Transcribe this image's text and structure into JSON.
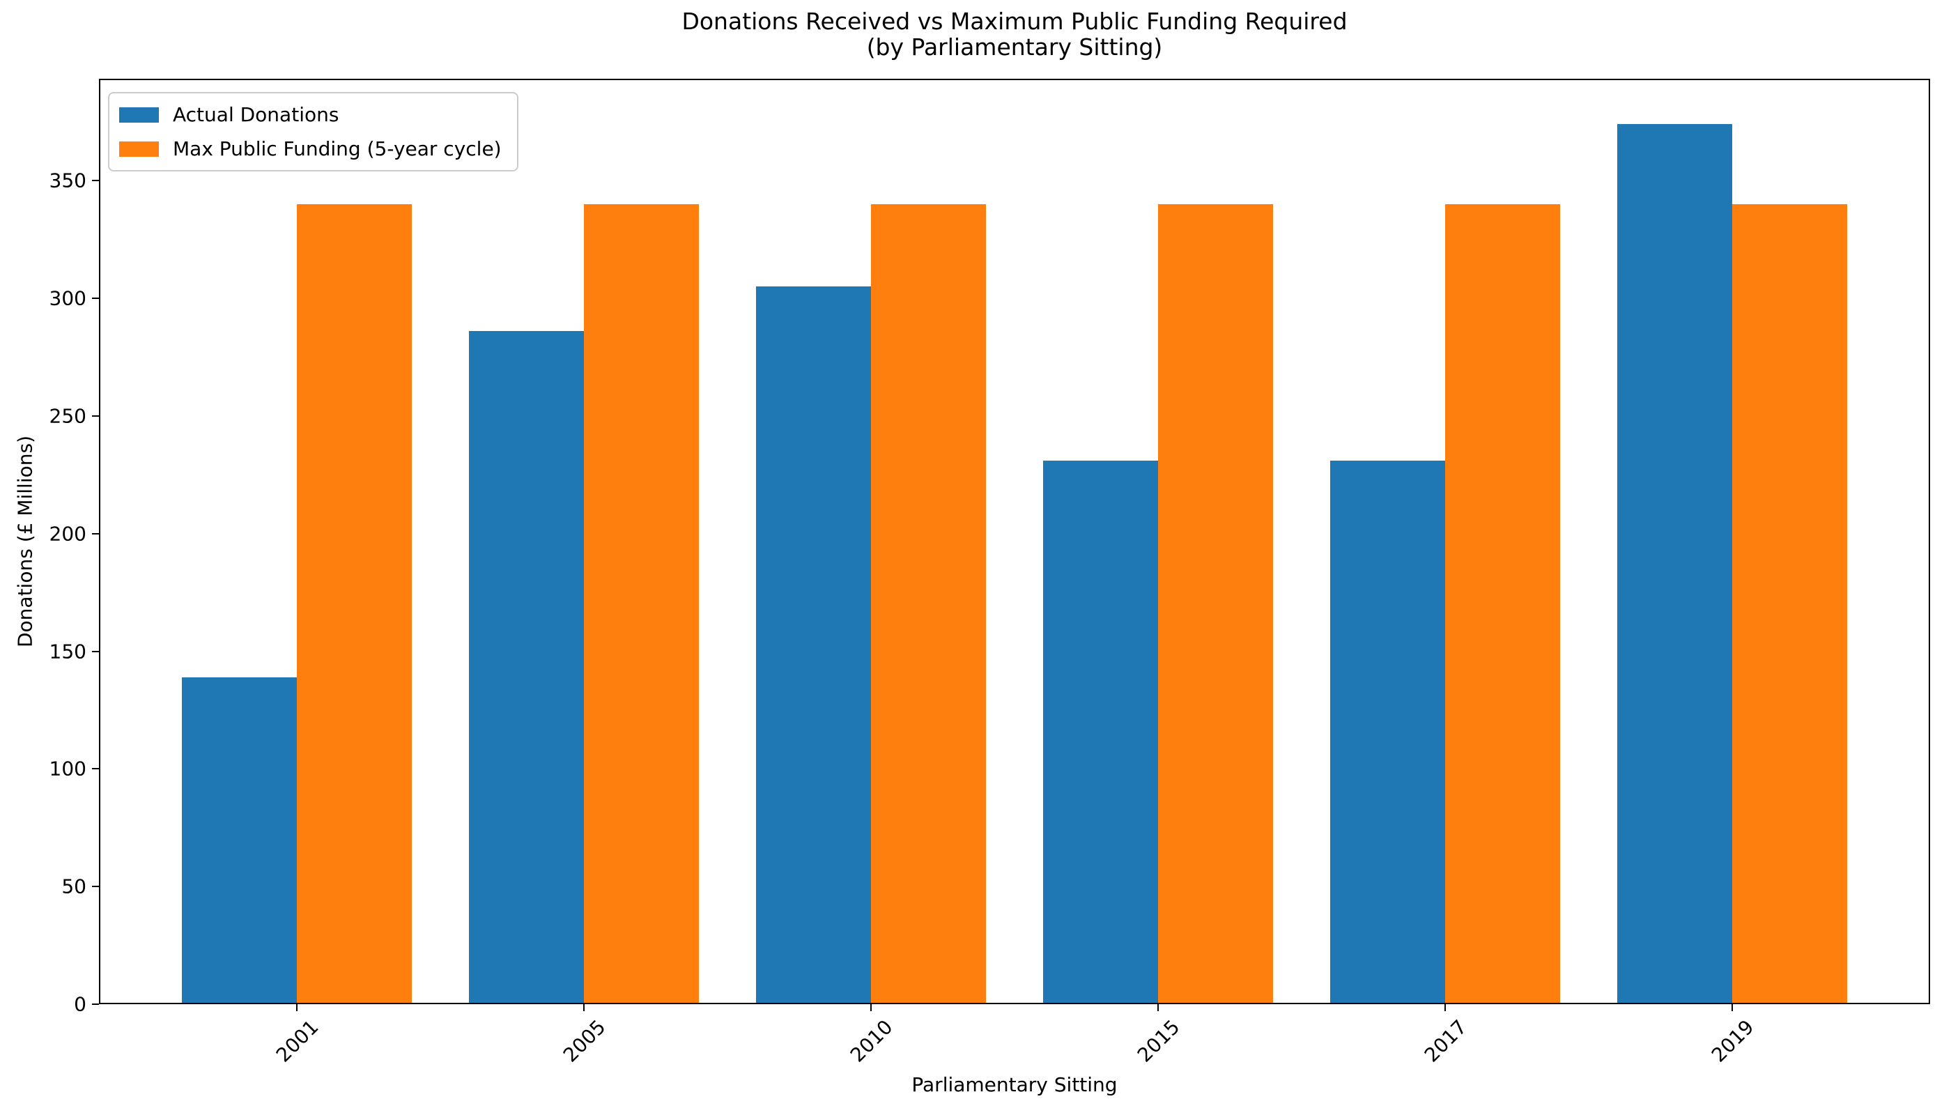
{
  "figure": {
    "background": "#ffffff",
    "text_color": "#000000"
  },
  "chart_data": {
    "type": "bar",
    "title_lines": [
      "Donations Received vs Maximum Public Funding Required",
      "(by Parliamentary Sitting)"
    ],
    "title": "Donations Received vs Maximum Public Funding Required\n(by Parliamentary Sitting)",
    "xlabel": "Parliamentary Sitting",
    "ylabel": "Donations (£ Millions)",
    "categories": [
      "2001",
      "2005",
      "2010",
      "2015",
      "2017",
      "2019"
    ],
    "series": [
      {
        "name": "Actual Donations",
        "color": "#1f77b4",
        "values": [
          139,
          286,
          305,
          231,
          231,
          374
        ]
      },
      {
        "name": "Max Public Funding (5-year cycle)",
        "color": "#ff7f0e",
        "values": [
          340,
          340,
          340,
          340,
          340,
          340
        ]
      }
    ],
    "ylim": [
      0,
      393.3
    ],
    "yticks": [
      0,
      50,
      100,
      150,
      200,
      250,
      300,
      350
    ],
    "bar_width_ratio": 0.4,
    "grid": false,
    "legend_position": "upper left",
    "xtick_rotation": 45
  }
}
